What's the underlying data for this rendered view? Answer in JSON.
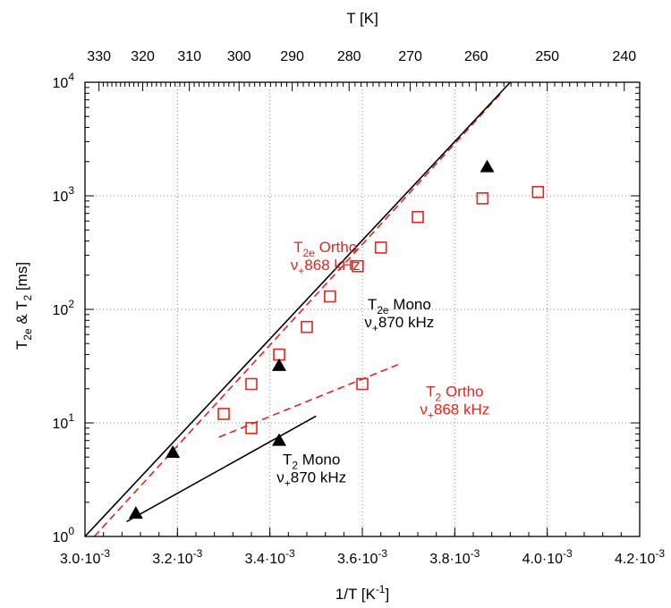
{
  "chart_data": {
    "type": "scatter",
    "x_axis": {
      "label_main": "1/T [K",
      "label_sup": "-1",
      "label_end": "]",
      "range": [
        0.003,
        0.0042
      ],
      "ticks": [
        {
          "value": 0.003,
          "mant": "3.0",
          "exp": "-3"
        },
        {
          "value": 0.0032,
          "mant": "3.2",
          "exp": "-3"
        },
        {
          "value": 0.0034,
          "mant": "3.4",
          "exp": "-3"
        },
        {
          "value": 0.0036,
          "mant": "3.6",
          "exp": "-3"
        },
        {
          "value": 0.0038,
          "mant": "3.8",
          "exp": "-3"
        },
        {
          "value": 0.004,
          "mant": "4.0",
          "exp": "-3"
        },
        {
          "value": 0.0042,
          "mant": "4.2",
          "exp": "-3"
        }
      ],
      "minor_step": 4e-05
    },
    "x2_axis": {
      "label": "T [K]",
      "ticks": [
        "330",
        "320",
        "310",
        "300",
        "290",
        "280",
        "270",
        "260",
        "250",
        "240"
      ],
      "tick_values_K": [
        330,
        320,
        310,
        300,
        290,
        280,
        270,
        260,
        250,
        240
      ]
    },
    "y_axis": {
      "label_parts": [
        "T",
        "2e",
        " & T",
        "2",
        " [ms]"
      ],
      "scale": "log",
      "range": [
        1,
        10000
      ],
      "ticks": [
        {
          "value": 1,
          "base": "10",
          "exp": "0"
        },
        {
          "value": 10,
          "base": "10",
          "exp": "1"
        },
        {
          "value": 100,
          "base": "10",
          "exp": "2"
        },
        {
          "value": 1000,
          "base": "10",
          "exp": "3"
        },
        {
          "value": 10000,
          "base": "10",
          "exp": "4"
        }
      ]
    },
    "grid": true,
    "series": [
      {
        "marker": "square-open",
        "color": "#e8231c",
        "points": [
          [
            0.0033,
            12
          ],
          [
            0.00336,
            9
          ],
          [
            0.00336,
            22
          ],
          [
            0.00342,
            40
          ],
          [
            0.00348,
            70
          ],
          [
            0.00353,
            130
          ],
          [
            0.00359,
            240
          ],
          [
            0.0036,
            22
          ],
          [
            0.00364,
            350
          ],
          [
            0.00372,
            650
          ],
          [
            0.00386,
            950
          ],
          [
            0.00398,
            1080
          ]
        ]
      },
      {
        "marker": "triangle-filled",
        "color": "#000000",
        "points": [
          [
            0.00311,
            1.6
          ],
          [
            0.00319,
            5.5
          ],
          [
            0.00342,
            7.0
          ],
          [
            0.00342,
            32
          ],
          [
            0.00387,
            1800
          ]
        ]
      }
    ],
    "fit_lines": [
      {
        "color": "#e8231c",
        "dash": true,
        "points": [
          [
            0.00302,
            1.0
          ],
          [
            0.0039,
            8000
          ]
        ]
      },
      {
        "color": "#000000",
        "dash": false,
        "points": [
          [
            0.003,
            1.0
          ],
          [
            0.00392,
            10000
          ]
        ]
      },
      {
        "color": "#e8231c",
        "dash": true,
        "points": [
          [
            0.00329,
            7.5
          ],
          [
            0.00368,
            33
          ]
        ]
      },
      {
        "color": "#000000",
        "dash": false,
        "points": [
          [
            0.00309,
            1.35
          ],
          [
            0.0035,
            11.5
          ]
        ]
      }
    ],
    "annotations": [
      {
        "id": "t2e-ortho",
        "color": "#e8231c",
        "x": 0.00352,
        "y": 320,
        "line1": [
          "T",
          "2e",
          " Ortho"
        ],
        "line2": [
          "ν",
          "+",
          "868 kHz"
        ]
      },
      {
        "id": "t2e-mono",
        "color": "#000000",
        "x": 0.00368,
        "y": 100,
        "line1": [
          "T",
          "2e",
          " Mono"
        ],
        "line2": [
          "ν",
          "+",
          "870 kHz"
        ]
      },
      {
        "id": "t2-ortho",
        "color": "#e8231c",
        "x": 0.0038,
        "y": 17,
        "line1": [
          "T",
          "2",
          " Ortho"
        ],
        "line2": [
          "ν",
          "+",
          "868 kHz"
        ]
      },
      {
        "id": "t2-mono",
        "color": "#000000",
        "x": 0.00349,
        "y": 4.3,
        "line1": [
          "T",
          "2",
          " Mono"
        ],
        "line2": [
          "ν",
          "+",
          "870 kHz"
        ]
      }
    ]
  }
}
